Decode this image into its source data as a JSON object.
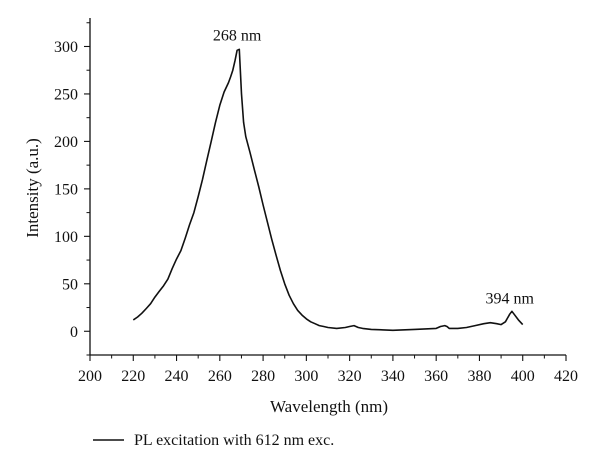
{
  "chart_data": {
    "type": "line",
    "xlabel": "Wavelength (nm)",
    "ylabel": "Intensity (a.u.)",
    "xlim": [
      200,
      420
    ],
    "ylim": [
      -25,
      330
    ],
    "x_ticks": [
      200,
      220,
      240,
      260,
      280,
      300,
      320,
      340,
      360,
      380,
      400,
      420
    ],
    "y_ticks": [
      0,
      50,
      100,
      150,
      200,
      250,
      300
    ],
    "grid": false,
    "legend_position": "bottom-left",
    "annotations": [
      {
        "text": "268 nm",
        "x": 268,
        "y": 298
      },
      {
        "text": "394 nm",
        "x": 394,
        "y": 21
      }
    ],
    "series": [
      {
        "name": "PL excitation with 612 nm exc.",
        "color": "#111111",
        "points": [
          [
            220,
            12
          ],
          [
            222,
            15
          ],
          [
            224,
            19
          ],
          [
            226,
            24
          ],
          [
            228,
            29
          ],
          [
            230,
            36
          ],
          [
            232,
            42
          ],
          [
            234,
            48
          ],
          [
            236,
            55
          ],
          [
            238,
            66
          ],
          [
            240,
            76
          ],
          [
            242,
            85
          ],
          [
            244,
            98
          ],
          [
            246,
            112
          ],
          [
            248,
            125
          ],
          [
            250,
            142
          ],
          [
            252,
            160
          ],
          [
            254,
            180
          ],
          [
            256,
            200
          ],
          [
            258,
            220
          ],
          [
            260,
            238
          ],
          [
            262,
            252
          ],
          [
            264,
            262
          ],
          [
            265,
            268
          ],
          [
            266,
            275
          ],
          [
            267,
            285
          ],
          [
            268,
            296
          ],
          [
            269,
            297
          ],
          [
            270,
            250
          ],
          [
            271,
            220
          ],
          [
            272,
            205
          ],
          [
            274,
            188
          ],
          [
            276,
            170
          ],
          [
            278,
            152
          ],
          [
            280,
            133
          ],
          [
            282,
            115
          ],
          [
            284,
            97
          ],
          [
            286,
            80
          ],
          [
            288,
            64
          ],
          [
            290,
            50
          ],
          [
            292,
            38
          ],
          [
            294,
            29
          ],
          [
            296,
            22
          ],
          [
            298,
            17
          ],
          [
            300,
            13
          ],
          [
            302,
            10
          ],
          [
            304,
            8
          ],
          [
            306,
            6
          ],
          [
            308,
            5
          ],
          [
            310,
            4
          ],
          [
            314,
            3
          ],
          [
            318,
            4
          ],
          [
            320,
            5
          ],
          [
            322,
            6
          ],
          [
            324,
            4
          ],
          [
            326,
            3
          ],
          [
            330,
            2
          ],
          [
            340,
            1
          ],
          [
            350,
            2
          ],
          [
            360,
            3
          ],
          [
            362,
            5
          ],
          [
            364,
            6
          ],
          [
            365,
            5
          ],
          [
            366,
            3
          ],
          [
            370,
            3
          ],
          [
            374,
            4
          ],
          [
            378,
            6
          ],
          [
            382,
            8
          ],
          [
            385,
            9
          ],
          [
            388,
            8
          ],
          [
            390,
            7
          ],
          [
            392,
            10
          ],
          [
            394,
            18
          ],
          [
            395,
            21
          ],
          [
            396,
            18
          ],
          [
            398,
            12
          ],
          [
            400,
            7
          ]
        ]
      }
    ]
  }
}
